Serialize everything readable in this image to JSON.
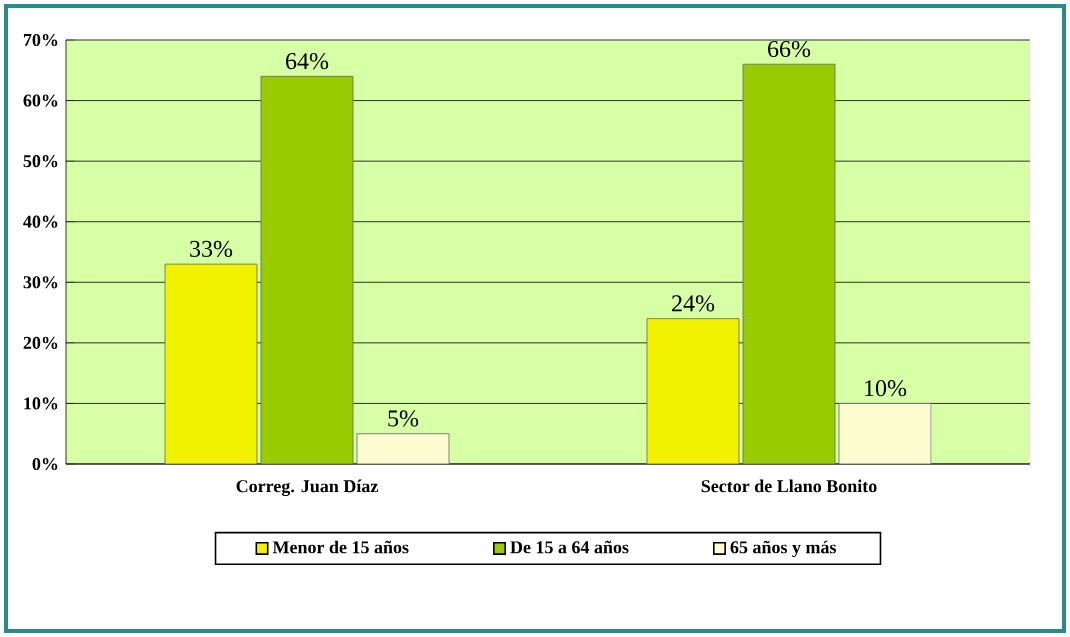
{
  "chart_data": {
    "type": "bar",
    "categories": [
      "Correg. Juan Díaz",
      "Sector de Llano Bonito"
    ],
    "series": [
      {
        "name": "Menor de 15 años",
        "color": "#f2f200",
        "values": [
          33,
          24
        ],
        "value_labels": [
          "33%",
          "24%"
        ]
      },
      {
        "name": "De 15 a 64 años",
        "color": "#99cc00",
        "values": [
          64,
          66
        ],
        "value_labels": [
          "64%",
          "66%"
        ]
      },
      {
        "name": "65 años y más",
        "color": "#fdfbd0",
        "values": [
          5,
          10
        ],
        "value_labels": [
          "5%",
          "10%"
        ]
      }
    ],
    "ylim": [
      0,
      70
    ],
    "yticks": [
      {
        "value": 0,
        "label": "0%"
      },
      {
        "value": 10,
        "label": "10%"
      },
      {
        "value": 20,
        "label": "20%"
      },
      {
        "value": 30,
        "label": "30%"
      },
      {
        "value": 40,
        "label": "40%"
      },
      {
        "value": 50,
        "label": "50%"
      },
      {
        "value": 60,
        "label": "60%"
      },
      {
        "value": 70,
        "label": "70%"
      }
    ],
    "grid": "y",
    "legend": "bottom"
  }
}
